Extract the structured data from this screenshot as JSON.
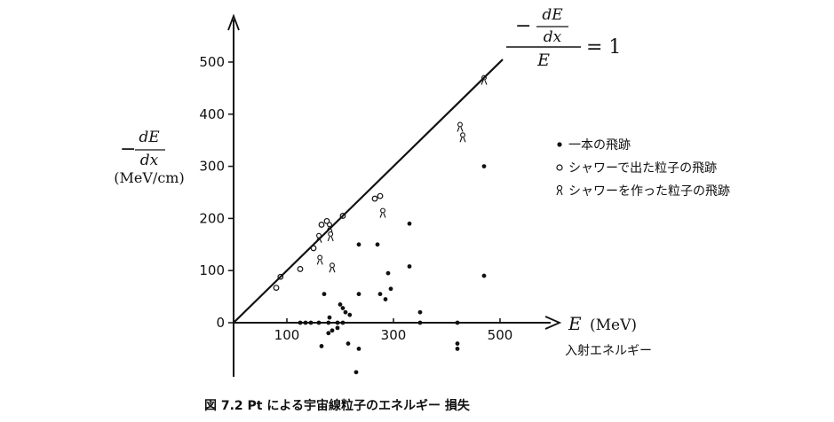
{
  "chart_data": {
    "type": "scatter",
    "caption": "図 7.2  Pt による宇宙線粒子のエネルギー 損失",
    "xaxis": {
      "var": "E",
      "unit": "(MeV)",
      "sublabel": "入射エネルギー",
      "ticks": [
        100,
        300,
        500
      ],
      "tick_labels": [
        "100",
        "300",
        "500"
      ],
      "range": [
        0,
        600
      ]
    },
    "yaxis": {
      "label_minus": "−",
      "label_num": "dE",
      "label_den": "dx",
      "unit": "(MeV/cm)",
      "ticks": [
        0,
        100,
        200,
        300,
        400,
        500
      ],
      "tick_labels": [
        "0",
        "100",
        "200",
        "300",
        "400",
        "500"
      ],
      "range": [
        -100,
        580
      ]
    },
    "line": {
      "x": [
        0,
        505
      ],
      "y": [
        0,
        505
      ],
      "label_minus": "−",
      "label_num": "dE",
      "label_den": "dx",
      "label_bottom": "E",
      "label_eq": "= 1"
    },
    "legend": {
      "position": "right",
      "items": [
        {
          "marker": "●",
          "label": "一本の飛跡"
        },
        {
          "marker": "○",
          "label": "シャワーで出た粒子の飛跡"
        },
        {
          "marker": "ℵ",
          "label": "シャワーを作った粒子の飛跡"
        }
      ]
    },
    "series": [
      {
        "name": "一本の飛跡",
        "marker": "dot",
        "points": [
          [
            125,
            0
          ],
          [
            135,
            0
          ],
          [
            145,
            0
          ],
          [
            160,
            0
          ],
          [
            178,
            0
          ],
          [
            195,
            0
          ],
          [
            205,
            0
          ],
          [
            180,
            10
          ],
          [
            170,
            55
          ],
          [
            200,
            35
          ],
          [
            205,
            28
          ],
          [
            210,
            20
          ],
          [
            218,
            15
          ],
          [
            195,
            -10
          ],
          [
            178,
            -20
          ],
          [
            185,
            -15
          ],
          [
            165,
            -45
          ],
          [
            215,
            -40
          ],
          [
            235,
            -50
          ],
          [
            230,
            -95
          ],
          [
            235,
            55
          ],
          [
            235,
            150
          ],
          [
            275,
            55
          ],
          [
            285,
            45
          ],
          [
            290,
            95
          ],
          [
            295,
            65
          ],
          [
            270,
            150
          ],
          [
            330,
            108
          ],
          [
            330,
            190
          ],
          [
            350,
            20
          ],
          [
            350,
            0
          ],
          [
            420,
            0
          ],
          [
            420,
            -40
          ],
          [
            420,
            -50
          ],
          [
            470,
            300
          ],
          [
            470,
            90
          ]
        ]
      },
      {
        "name": "シャワーで出た粒子の飛跡",
        "marker": "circle",
        "points": [
          [
            80,
            67
          ],
          [
            88,
            88
          ],
          [
            125,
            103
          ],
          [
            150,
            143
          ],
          [
            165,
            188
          ],
          [
            175,
            195
          ],
          [
            205,
            205
          ],
          [
            265,
            238
          ],
          [
            275,
            243
          ]
        ]
      },
      {
        "name": "シャワーを作った粒子の飛跡",
        "marker": "chain",
        "points": [
          [
            160,
            162
          ],
          [
            162,
            120
          ],
          [
            180,
            183
          ],
          [
            182,
            165
          ],
          [
            185,
            105
          ],
          [
            280,
            210
          ],
          [
            425,
            375
          ],
          [
            430,
            355
          ],
          [
            470,
            465
          ]
        ]
      }
    ]
  }
}
